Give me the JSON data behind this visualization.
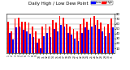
{
  "title": "Daily High / Low Dew Point",
  "title_color": "#000000",
  "title_fontsize": 4.5,
  "legend_labels": [
    "Low",
    "High"
  ],
  "legend_colors": [
    "#0000ff",
    "#ff0000"
  ],
  "background_color": "#ffffff",
  "plot_bg_color": "#000000",
  "bar_width": 0.42,
  "ylim": [
    0,
    80
  ],
  "ytick_values": [
    10,
    20,
    30,
    40,
    50,
    60,
    70,
    80
  ],
  "ylabel_side": "right",
  "days": [
    "1",
    "2",
    "3",
    "4",
    "5",
    "6",
    "7",
    "8",
    "9",
    "10",
    "11",
    "12",
    "13",
    "14",
    "15",
    "16",
    "17",
    "18",
    "19",
    "20",
    "21",
    "22",
    "23",
    "24",
    "25",
    "26",
    "27",
    "28",
    "29",
    "30",
    "31"
  ],
  "high_values": [
    65,
    45,
    70,
    72,
    65,
    65,
    62,
    55,
    45,
    30,
    55,
    60,
    55,
    68,
    62,
    75,
    72,
    60,
    55,
    50,
    45,
    60,
    70,
    65,
    72,
    75,
    68,
    62,
    55,
    60,
    70
  ],
  "low_values": [
    42,
    28,
    52,
    55,
    48,
    45,
    40,
    33,
    22,
    10,
    35,
    42,
    33,
    50,
    45,
    58,
    55,
    42,
    38,
    30,
    25,
    42,
    52,
    47,
    54,
    58,
    50,
    45,
    35,
    42,
    52
  ]
}
